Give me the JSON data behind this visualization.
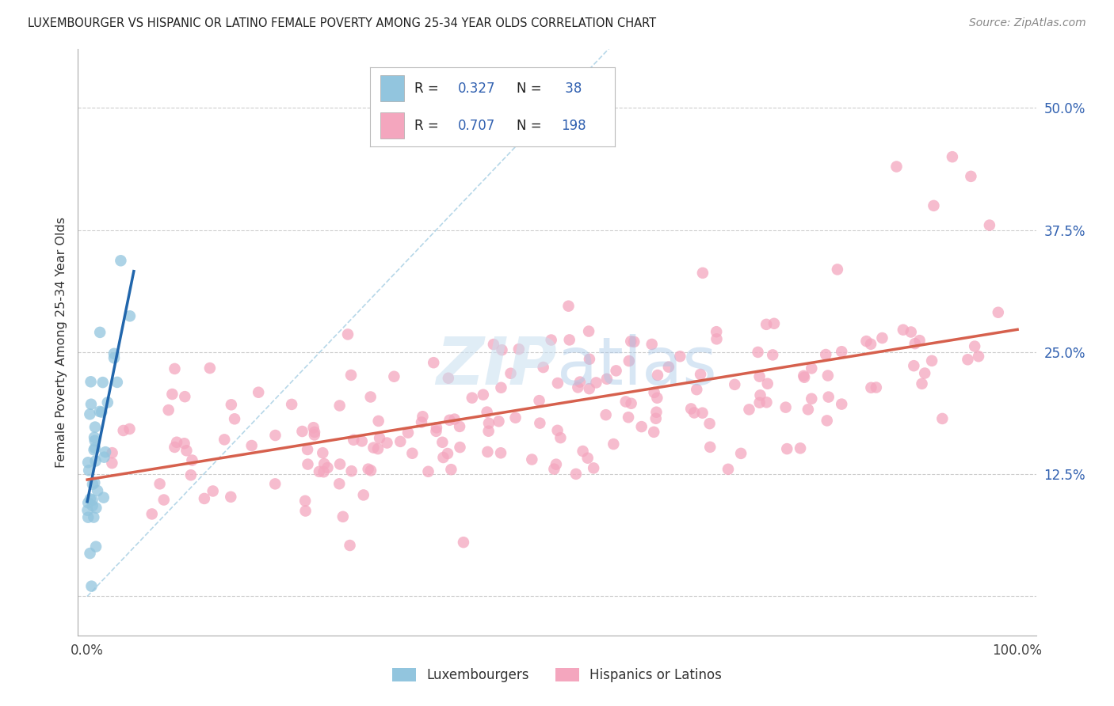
{
  "title": "LUXEMBOURGER VS HISPANIC OR LATINO FEMALE POVERTY AMONG 25-34 YEAR OLDS CORRELATION CHART",
  "source": "Source: ZipAtlas.com",
  "ylabel": "Female Poverty Among 25-34 Year Olds",
  "xlim": [
    -0.01,
    1.02
  ],
  "ylim": [
    -0.04,
    0.56
  ],
  "R_lux": 0.327,
  "N_lux": 38,
  "R_hisp": 0.707,
  "N_hisp": 198,
  "color_lux": "#92c5de",
  "color_hisp": "#f4a6be",
  "color_lux_line": "#2166ac",
  "color_hisp_line": "#d6604d",
  "diag_color": "#9ecae1",
  "background_color": "#ffffff",
  "grid_color": "#c8c8c8",
  "lux_intercept": 0.115,
  "lux_slope_val": 3.2,
  "hisp_intercept": 0.127,
  "hisp_slope_val": 0.135
}
